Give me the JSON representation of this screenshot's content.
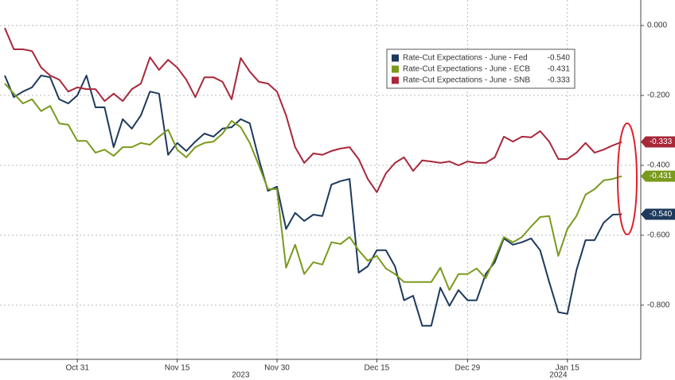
{
  "chart_data": {
    "type": "line",
    "x": [
      "2023-10-19",
      "2023-10-20",
      "2023-10-23",
      "2023-10-24",
      "2023-10-25",
      "2023-10-26",
      "2023-10-27",
      "2023-10-30",
      "2023-10-31",
      "2023-11-01",
      "2023-11-02",
      "2023-11-03",
      "2023-11-06",
      "2023-11-07",
      "2023-11-08",
      "2023-11-09",
      "2023-11-10",
      "2023-11-13",
      "2023-11-14",
      "2023-11-15",
      "2023-11-16",
      "2023-11-17",
      "2023-11-20",
      "2023-11-21",
      "2023-11-22",
      "2023-11-23",
      "2023-11-24",
      "2023-11-27",
      "2023-11-28",
      "2023-11-29",
      "2023-11-30",
      "2023-12-01",
      "2023-12-04",
      "2023-12-05",
      "2023-12-06",
      "2023-12-07",
      "2023-12-08",
      "2023-12-11",
      "2023-12-12",
      "2023-12-13",
      "2023-12-14",
      "2023-12-15",
      "2023-12-18",
      "2023-12-19",
      "2023-12-20",
      "2023-12-21",
      "2023-12-22",
      "2023-12-25",
      "2023-12-26",
      "2023-12-27",
      "2023-12-28",
      "2023-12-29",
      "2024-01-01",
      "2024-01-02",
      "2024-01-03",
      "2024-01-04",
      "2024-01-05",
      "2024-01-08",
      "2024-01-09",
      "2024-01-10",
      "2024-01-11",
      "2024-01-12",
      "2024-01-15",
      "2024-01-16",
      "2024-01-17",
      "2024-01-18",
      "2024-01-19",
      "2024-01-22",
      "2024-01-23"
    ],
    "xticks": [
      {
        "value": "2023-10-31",
        "label": "Oct 31"
      },
      {
        "value": "2023-11-15",
        "label": "Nov 15"
      },
      {
        "value": "2023-11-30",
        "label": "Nov 30"
      },
      {
        "value": "2023-12-15",
        "label": "Dec 15"
      },
      {
        "value": "2023-12-29",
        "label": "Dec 29"
      },
      {
        "value": "2024-01-15",
        "label": "Jan 15"
      }
    ],
    "x_year_labels": [
      {
        "value": "2023-11-24",
        "label": "2023"
      },
      {
        "value": "2024-01-12",
        "label": "2024"
      }
    ],
    "ylim": [
      -0.955,
      0.073
    ],
    "yticks": [
      {
        "value": 0,
        "label": "0.000"
      },
      {
        "value": -0.2,
        "label": "-0.200"
      },
      {
        "value": -0.4,
        "label": "-0.400"
      },
      {
        "value": -0.6,
        "label": "-0.600"
      },
      {
        "value": -0.8,
        "label": "-0.800"
      }
    ],
    "grid": true,
    "legend_position": "top-right",
    "series": [
      {
        "name": "Rate-Cut Expectations - June - Fed",
        "color": "#1e3a5c",
        "last_label": "-0.540",
        "values": [
          -0.143,
          -0.205,
          -0.189,
          -0.177,
          -0.143,
          -0.148,
          -0.211,
          -0.223,
          -0.2,
          -0.143,
          -0.234,
          -0.234,
          -0.348,
          -0.268,
          -0.295,
          -0.257,
          -0.189,
          -0.195,
          -0.37,
          -0.336,
          -0.359,
          -0.332,
          -0.309,
          -0.318,
          -0.295,
          -0.291,
          -0.268,
          -0.28,
          -0.382,
          -0.473,
          -0.461,
          -0.582,
          -0.536,
          -0.559,
          -0.541,
          -0.545,
          -0.455,
          -0.445,
          -0.439,
          -0.707,
          -0.689,
          -0.643,
          -0.643,
          -0.689,
          -0.786,
          -0.773,
          -0.859,
          -0.859,
          -0.75,
          -0.802,
          -0.757,
          -0.786,
          -0.786,
          -0.711,
          -0.677,
          -0.609,
          -0.627,
          -0.62,
          -0.609,
          -0.643,
          -0.734,
          -0.82,
          -0.825,
          -0.7,
          -0.614,
          -0.614,
          -0.564,
          -0.541,
          -0.54
        ]
      },
      {
        "name": "Rate-Cut Expectations - June - ECB",
        "color": "#7a9a1e",
        "last_label": "-0.431",
        "values": [
          -0.166,
          -0.195,
          -0.223,
          -0.211,
          -0.245,
          -0.23,
          -0.28,
          -0.284,
          -0.33,
          -0.33,
          -0.364,
          -0.355,
          -0.373,
          -0.348,
          -0.348,
          -0.336,
          -0.341,
          -0.318,
          -0.298,
          -0.355,
          -0.377,
          -0.348,
          -0.336,
          -0.332,
          -0.309,
          -0.273,
          -0.291,
          -0.336,
          -0.4,
          -0.468,
          -0.468,
          -0.693,
          -0.627,
          -0.711,
          -0.677,
          -0.684,
          -0.62,
          -0.625,
          -0.605,
          -0.643,
          -0.673,
          -0.659,
          -0.695,
          -0.711,
          -0.734,
          -0.734,
          -0.734,
          -0.734,
          -0.693,
          -0.757,
          -0.711,
          -0.711,
          -0.695,
          -0.723,
          -0.666,
          -0.605,
          -0.62,
          -0.605,
          -0.575,
          -0.548,
          -0.545,
          -0.659,
          -0.582,
          -0.545,
          -0.484,
          -0.468,
          -0.443,
          -0.439,
          -0.431
        ]
      },
      {
        "name": "Rate-Cut Expectations - June - SNB",
        "color": "#a8283a",
        "last_label": "-0.333",
        "values": [
          -0.007,
          -0.068,
          -0.068,
          -0.073,
          -0.12,
          -0.143,
          -0.155,
          -0.189,
          -0.177,
          -0.182,
          -0.182,
          -0.216,
          -0.195,
          -0.216,
          -0.182,
          -0.166,
          -0.091,
          -0.127,
          -0.098,
          -0.12,
          -0.155,
          -0.205,
          -0.148,
          -0.148,
          -0.161,
          -0.211,
          -0.093,
          -0.132,
          -0.161,
          -0.166,
          -0.189,
          -0.257,
          -0.348,
          -0.393,
          -0.366,
          -0.37,
          -0.359,
          -0.352,
          -0.348,
          -0.382,
          -0.439,
          -0.477,
          -0.423,
          -0.393,
          -0.377,
          -0.416,
          -0.386,
          -0.389,
          -0.393,
          -0.389,
          -0.4,
          -0.389,
          -0.393,
          -0.393,
          -0.377,
          -0.318,
          -0.332,
          -0.318,
          -0.32,
          -0.302,
          -0.332,
          -0.382,
          -0.382,
          -0.364,
          -0.336,
          -0.364,
          -0.355,
          -0.343,
          -0.333
        ]
      }
    ]
  }
}
